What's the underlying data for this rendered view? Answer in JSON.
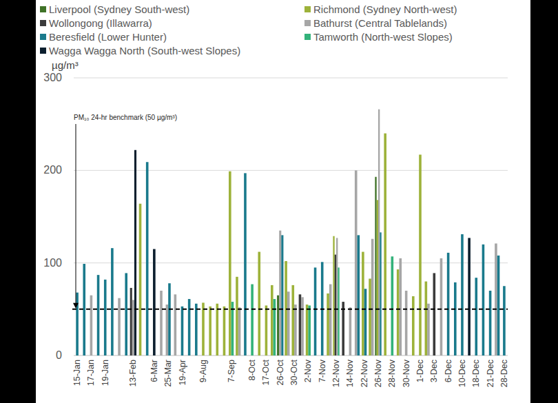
{
  "chart_data": {
    "type": "bar",
    "ylabel": "µg/m³",
    "annotations": [
      {
        "text": "PM₁₀ 24-hr benchmark (50 µg/m³)",
        "value": 50
      }
    ],
    "categories": [
      "15-Jan",
      null,
      "17-Jan",
      null,
      "19-Jan",
      null,
      null,
      null,
      "13-Feb",
      null,
      null,
      "6-Mar",
      null,
      "25-Mar",
      null,
      "19-Apr",
      null,
      null,
      "9-Aug",
      null,
      null,
      null,
      "7-Sep",
      null,
      null,
      "8-Oct",
      null,
      "17-Oct",
      null,
      "26-Oct",
      null,
      "30-Oct",
      null,
      "2-Nov",
      null,
      "7-Nov",
      null,
      "12-Nov",
      null,
      "14-Nov",
      null,
      "22-Nov",
      null,
      "26-Nov",
      null,
      "28-Nov",
      null,
      "30-Nov",
      null,
      "1-Dec",
      null,
      "3-Dec",
      null,
      "6-Dec",
      null,
      "10-Dec",
      null,
      "18-Dec",
      null,
      "21-Dec",
      null,
      "28-Dec"
    ],
    "series": [
      {
        "name": "Liverpool (Sydney South-west)",
        "color": "#3f7227",
        "values": [
          null,
          null,
          null,
          null,
          null,
          null,
          null,
          null,
          null,
          null,
          null,
          null,
          null,
          null,
          null,
          null,
          null,
          null,
          null,
          null,
          null,
          null,
          null,
          null,
          null,
          null,
          null,
          null,
          null,
          65,
          null,
          null,
          null,
          null,
          null,
          null,
          null,
          null,
          null,
          null,
          null,
          null,
          null,
          193,
          null,
          null,
          null,
          null,
          null,
          null,
          null,
          null,
          null,
          null,
          null,
          null,
          null,
          null,
          null,
          null,
          null,
          null
        ]
      },
      {
        "name": "Richmond (Sydney North-west)",
        "color": "#9db23a",
        "values": [
          null,
          null,
          null,
          null,
          null,
          null,
          null,
          null,
          null,
          164,
          null,
          null,
          null,
          null,
          null,
          null,
          null,
          null,
          57,
          53,
          56,
          53,
          199,
          85,
          null,
          null,
          112,
          54,
          76,
          null,
          102,
          76,
          null,
          55,
          null,
          null,
          67,
          129,
          null,
          null,
          null,
          112,
          83,
          168,
          240,
          null,
          93,
          null,
          64,
          217,
          80,
          null,
          null,
          null,
          null,
          null,
          null,
          null,
          null,
          null,
          null,
          null
        ]
      },
      {
        "name": "Wollongong (Illawarra)",
        "color": "#3b3b3b",
        "values": [
          null,
          null,
          null,
          null,
          null,
          null,
          null,
          null,
          73,
          null,
          null,
          null,
          null,
          null,
          null,
          null,
          null,
          null,
          null,
          null,
          null,
          null,
          null,
          null,
          null,
          null,
          null,
          null,
          null,
          null,
          null,
          null,
          66,
          null,
          null,
          null,
          null,
          109,
          58,
          null,
          null,
          null,
          null,
          null,
          null,
          null,
          null,
          null,
          null,
          null,
          null,
          89,
          null,
          null,
          null,
          null,
          null,
          null,
          null,
          null,
          null,
          null
        ]
      },
      {
        "name": "Bathurst (Central Tablelands)",
        "color": "#a6a6a6",
        "values": [
          null,
          null,
          65,
          null,
          null,
          null,
          62,
          null,
          60,
          null,
          null,
          null,
          70,
          55,
          66,
          null,
          null,
          null,
          null,
          null,
          null,
          null,
          null,
          52,
          null,
          null,
          null,
          null,
          null,
          135,
          69,
          55,
          63,
          null,
          null,
          null,
          77,
          127,
          null,
          52,
          200,
          null,
          126,
          266,
          null,
          null,
          105,
          70,
          null,
          null,
          56,
          null,
          105,
          null,
          null,
          null,
          null,
          null,
          null,
          null,
          121,
          null
        ]
      },
      {
        "name": "Beresfield (Lower Hunter)",
        "color": "#1a7a8c",
        "values": [
          68,
          99,
          null,
          87,
          82,
          116,
          null,
          89,
          null,
          null,
          209,
          null,
          null,
          78,
          null,
          53,
          61,
          56,
          null,
          null,
          null,
          null,
          null,
          null,
          197,
          null,
          null,
          null,
          null,
          130,
          null,
          null,
          null,
          null,
          95,
          101,
          null,
          null,
          null,
          null,
          130,
          72,
          null,
          133,
          null,
          null,
          null,
          null,
          null,
          null,
          null,
          null,
          null,
          111,
          79,
          131,
          null,
          84,
          120,
          70,
          108,
          75
        ]
      },
      {
        "name": "Tamworth (North-west Slopes)",
        "color": "#33b27a",
        "values": [
          null,
          null,
          null,
          null,
          null,
          null,
          null,
          null,
          null,
          null,
          null,
          null,
          null,
          null,
          null,
          null,
          null,
          null,
          null,
          null,
          null,
          null,
          58,
          null,
          null,
          77,
          null,
          null,
          61,
          null,
          null,
          null,
          null,
          54,
          null,
          null,
          null,
          95,
          null,
          null,
          null,
          null,
          null,
          null,
          null,
          107,
          null,
          null,
          null,
          null,
          null,
          null,
          null,
          null,
          null,
          null,
          null,
          null,
          null,
          null,
          null,
          null
        ]
      },
      {
        "name": "Wagga Wagga North (South-west Slopes)",
        "color": "#0c1f2e",
        "values": [
          null,
          null,
          null,
          null,
          null,
          null,
          null,
          null,
          222,
          null,
          null,
          115,
          null,
          null,
          null,
          null,
          null,
          null,
          null,
          null,
          null,
          null,
          null,
          null,
          null,
          null,
          null,
          null,
          null,
          null,
          null,
          null,
          null,
          null,
          null,
          null,
          null,
          null,
          null,
          null,
          null,
          null,
          null,
          null,
          null,
          null,
          null,
          null,
          null,
          null,
          null,
          null,
          null,
          null,
          null,
          null,
          127,
          null,
          null,
          null,
          null,
          null
        ]
      }
    ],
    "ylim": [
      0,
      300
    ],
    "yticks": [
      0,
      100,
      200,
      300
    ],
    "grid": true,
    "legend": "top"
  }
}
